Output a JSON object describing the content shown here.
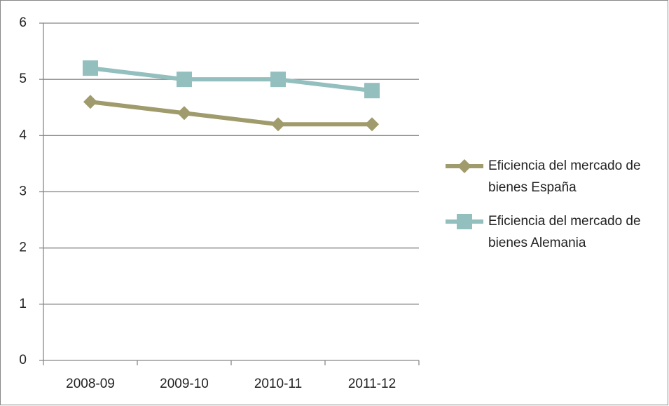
{
  "chart_data": {
    "type": "line",
    "categories": [
      "2008-09",
      "2009-10",
      "2010-11",
      "2011-12"
    ],
    "series": [
      {
        "name": "Eficiencia del mercado de bienes España",
        "color": "#a09b6c",
        "marker": "diamond",
        "values": [
          4.6,
          4.4,
          4.2,
          4.2
        ]
      },
      {
        "name": "Eficiencia del mercado de bienes Alemania",
        "color": "#93bfbf",
        "marker": "square",
        "values": [
          5.2,
          5.0,
          5.0,
          4.8
        ]
      }
    ],
    "ylim": [
      0,
      6
    ],
    "yticks": [
      0,
      1,
      2,
      3,
      4,
      5,
      6
    ],
    "grid": true,
    "legend": "right"
  }
}
